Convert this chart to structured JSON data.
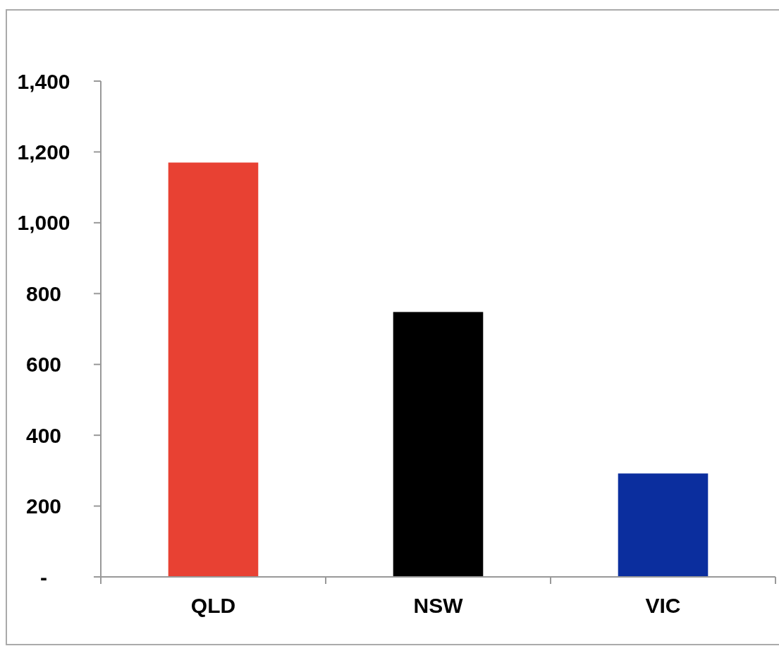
{
  "chart_data": {
    "type": "bar",
    "categories": [
      "QLD",
      "NSW",
      "VIC"
    ],
    "values": [
      1170,
      748,
      292
    ],
    "colors": [
      "#e84133",
      "#000000",
      "#0b2e9e"
    ],
    "ylim": [
      0,
      1400
    ],
    "yticks": [
      {
        "value": 0,
        "label": "-"
      },
      200,
      400,
      600,
      800,
      {
        "value": 1000,
        "label": "1,000"
      },
      {
        "value": 1200,
        "label": "1,200"
      },
      {
        "value": 1400,
        "label": "1,400"
      }
    ]
  }
}
